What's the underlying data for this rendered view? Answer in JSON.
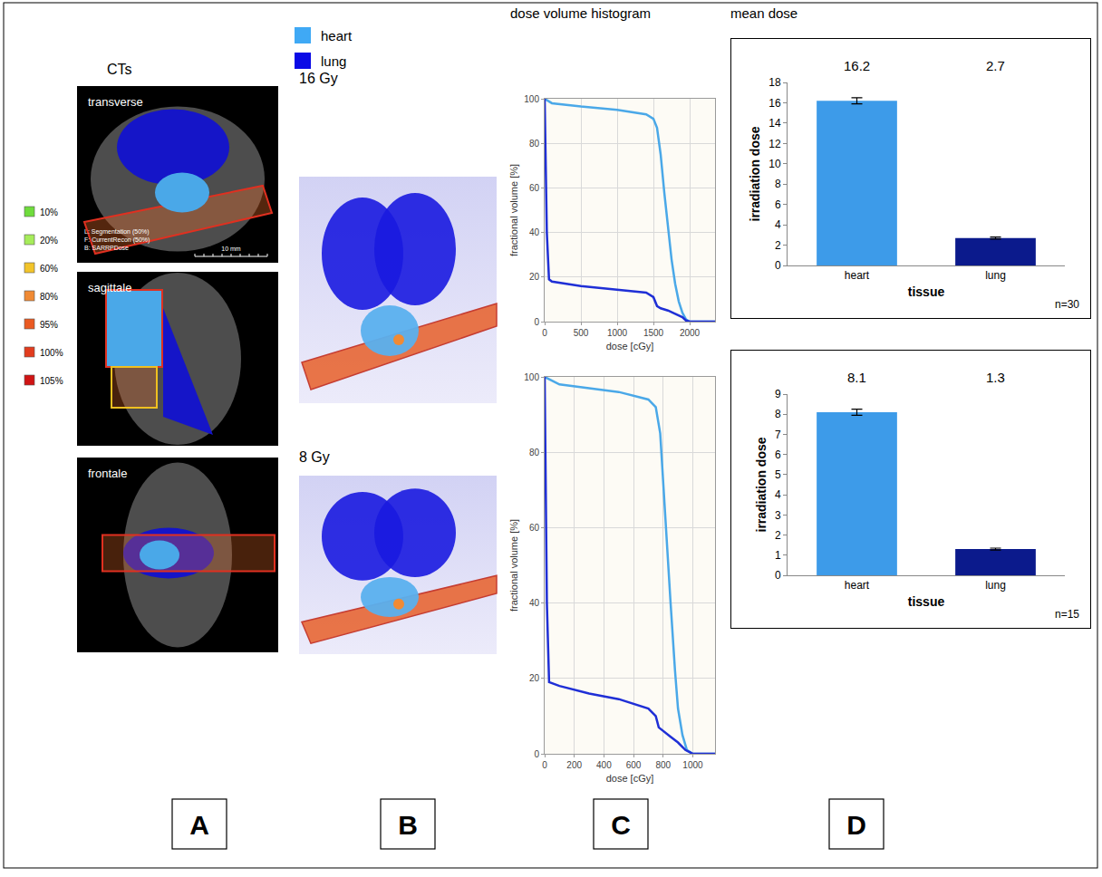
{
  "figure": {
    "panel_letters": [
      "A",
      "B",
      "C",
      "D"
    ],
    "A": {
      "title": "CTs",
      "views": [
        "transverse",
        "sagittale",
        "frontale"
      ],
      "isodose_legend": [
        {
          "label": "10%",
          "color": "#6fdc3c"
        },
        {
          "label": "20%",
          "color": "#a6ec5a"
        },
        {
          "label": "60%",
          "color": "#f2c42a"
        },
        {
          "label": "80%",
          "color": "#f08a34"
        },
        {
          "label": "95%",
          "color": "#ea5a22"
        },
        {
          "label": "100%",
          "color": "#e23c1e"
        },
        {
          "label": "105%",
          "color": "#d01414"
        }
      ],
      "overlay_texts": [
        "L: Segmentation (50%)",
        "F: CurrentRecon (50%)",
        "B: SARRPDose"
      ],
      "scale_bar": "10 mm"
    },
    "B": {
      "legend": [
        {
          "name": "heart",
          "color": "#3fa9f5"
        },
        {
          "name": "lung",
          "color": "#0a0ae6"
        }
      ],
      "doses": [
        "16 Gy",
        "8 Gy"
      ]
    },
    "C": {
      "title": "dose volume histogram"
    },
    "D": {
      "title": "mean dose"
    }
  },
  "chart_data": [
    {
      "type": "line",
      "x_title": "dose [cGy]",
      "y_title": "fractional volume [%]",
      "xlim": [
        0,
        2350
      ],
      "xticks": [
        0,
        500,
        1000,
        1500,
        2000
      ],
      "ylim": [
        0,
        100
      ],
      "yticks": [
        0,
        20,
        40,
        60,
        80,
        100
      ],
      "grid": true,
      "series": [
        {
          "color": "#4aa8e8",
          "x": [
            0,
            100,
            500,
            1000,
            1400,
            1500,
            1550,
            1600,
            1650,
            1700,
            1750,
            1800,
            1850,
            1900,
            1950,
            2000,
            2350
          ],
          "values": [
            100,
            98,
            96.5,
            95,
            93,
            91,
            87,
            75,
            58,
            42,
            28,
            17,
            9,
            4,
            1,
            0,
            0
          ]
        },
        {
          "color": "#1f2fd6",
          "x": [
            0,
            30,
            60,
            100,
            500,
            1000,
            1400,
            1500,
            1550,
            1600,
            1700,
            1800,
            1900,
            1950,
            2000,
            2350
          ],
          "values": [
            100,
            40,
            19,
            18,
            16,
            14.5,
            13,
            11,
            7,
            6,
            5,
            3.5,
            2,
            0.5,
            0,
            0
          ]
        }
      ]
    },
    {
      "type": "line",
      "x_title": "dose [cGy]",
      "y_title": "fractional volume [%]",
      "xlim": [
        0,
        1150
      ],
      "xticks": [
        0,
        200,
        400,
        600,
        800,
        1000
      ],
      "ylim": [
        0,
        100
      ],
      "yticks": [
        0,
        20,
        40,
        60,
        80,
        100
      ],
      "grid": true,
      "series": [
        {
          "color": "#4aa8e8",
          "x": [
            0,
            100,
            300,
            500,
            700,
            750,
            780,
            800,
            820,
            850,
            880,
            900,
            930,
            960,
            1000,
            1150
          ],
          "values": [
            100,
            98,
            97,
            96,
            94,
            92,
            85,
            72,
            58,
            40,
            22,
            12,
            5,
            1,
            0,
            0
          ]
        },
        {
          "color": "#1f2fd6",
          "x": [
            0,
            15,
            30,
            100,
            300,
            500,
            700,
            750,
            770,
            800,
            850,
            900,
            950,
            1000,
            1150
          ],
          "values": [
            100,
            40,
            19,
            18,
            16,
            14.5,
            12,
            10,
            7,
            6,
            4.5,
            3,
            1,
            0,
            0
          ]
        }
      ]
    },
    {
      "type": "bar",
      "x_title": "tissue",
      "y_title": "irradiation dose",
      "categories": [
        "heart",
        "lung"
      ],
      "values": [
        16.2,
        2.7
      ],
      "errors": [
        0.3,
        0.1
      ],
      "colors": [
        "#3d9be9",
        "#0b1a8c"
      ],
      "ylim": [
        0,
        18
      ],
      "yticks": [
        0,
        2,
        4,
        6,
        8,
        10,
        12,
        14,
        16,
        18
      ],
      "data_labels": true,
      "annotations": [
        "n=30"
      ]
    },
    {
      "type": "bar",
      "x_title": "tissue",
      "y_title": "irradiation dose",
      "categories": [
        "heart",
        "lung"
      ],
      "values": [
        8.1,
        1.3
      ],
      "errors": [
        0.15,
        0.05
      ],
      "colors": [
        "#3d9be9",
        "#0b1a8c"
      ],
      "ylim": [
        0,
        9
      ],
      "yticks": [
        0,
        1,
        2,
        3,
        4,
        5,
        6,
        7,
        8,
        9
      ],
      "data_labels": true,
      "annotations": [
        "n=15"
      ]
    }
  ]
}
